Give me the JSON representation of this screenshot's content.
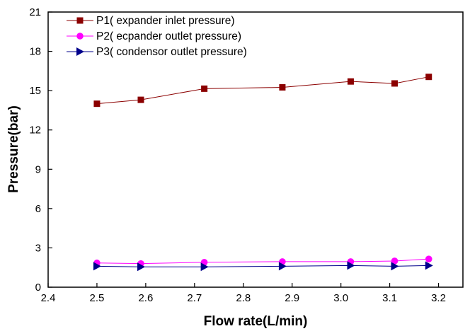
{
  "chart_data": {
    "type": "line",
    "title": "",
    "xlabel": "Flow rate(L/min)",
    "ylabel": "Pressure(bar)",
    "xlim": [
      2.4,
      3.25
    ],
    "ylim": [
      0,
      21
    ],
    "xticks": [
      "2.4",
      "2.5",
      "2.6",
      "2.7",
      "2.8",
      "2.9",
      "3.0",
      "3.1",
      "3.2"
    ],
    "yticks": [
      "0",
      "3",
      "6",
      "9",
      "12",
      "15",
      "18",
      "21"
    ],
    "grid": false,
    "legend_position": "top-left",
    "x": [
      2.5,
      2.59,
      2.72,
      2.88,
      3.02,
      3.11,
      3.18
    ],
    "series": [
      {
        "name": "P1( expander inlet pressure)",
        "color": "#8b0000",
        "marker": "square",
        "values": [
          14.0,
          14.3,
          15.15,
          15.25,
          15.7,
          15.55,
          16.05
        ]
      },
      {
        "name": "P2( ecpander outlet pressure)",
        "color": "#ff00ff",
        "marker": "circle",
        "values": [
          1.85,
          1.8,
          1.9,
          1.95,
          1.95,
          2.0,
          2.15
        ]
      },
      {
        "name": "P3( condensor outlet pressure)",
        "color": "#00008b",
        "marker": "triangle-right",
        "values": [
          1.6,
          1.55,
          1.55,
          1.6,
          1.65,
          1.6,
          1.65
        ]
      }
    ]
  }
}
